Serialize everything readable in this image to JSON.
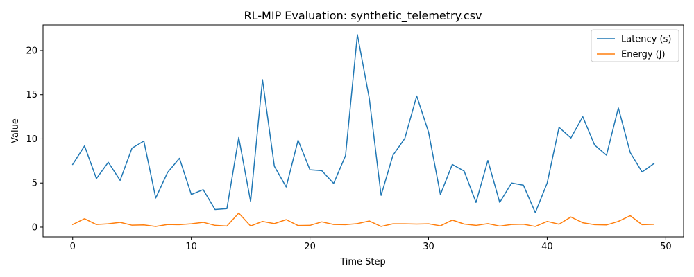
{
  "chart_data": {
    "type": "line",
    "title": "RL-MIP Evaluation: synthetic_telemetry.csv",
    "xlabel": "Time Step",
    "ylabel": "Value",
    "xlim": [
      -2.5,
      51.5
    ],
    "ylim": [
      -1.1,
      22.9
    ],
    "xticks": [
      0,
      10,
      20,
      30,
      40,
      50
    ],
    "yticks": [
      0,
      5,
      10,
      15,
      20
    ],
    "grid": false,
    "legend_position": "top-right",
    "x": [
      0,
      1,
      2,
      3,
      4,
      5,
      6,
      7,
      8,
      9,
      10,
      11,
      12,
      13,
      14,
      15,
      16,
      17,
      18,
      19,
      20,
      21,
      22,
      23,
      24,
      25,
      26,
      27,
      28,
      29,
      30,
      31,
      32,
      33,
      34,
      35,
      36,
      37,
      38,
      39,
      40,
      41,
      42,
      43,
      44,
      45,
      46,
      47,
      48,
      49
    ],
    "series": [
      {
        "name": "Latency (s)",
        "color": "#1f77b4",
        "values": [
          7.1,
          9.2,
          5.5,
          7.35,
          5.3,
          8.95,
          9.75,
          3.3,
          6.2,
          7.8,
          3.7,
          4.25,
          2.0,
          2.1,
          10.15,
          2.9,
          16.7,
          6.9,
          4.55,
          9.85,
          6.5,
          6.4,
          4.95,
          8.1,
          21.8,
          14.6,
          3.6,
          8.15,
          10.05,
          14.85,
          10.75,
          3.7,
          7.1,
          6.35,
          2.8,
          7.55,
          2.8,
          5.0,
          4.75,
          1.65,
          5.0,
          11.3,
          10.1,
          12.5,
          9.3,
          8.15,
          13.5,
          8.45,
          6.25,
          7.2
        ]
      },
      {
        "name": "Energy (J)",
        "color": "#ff7f0e",
        "values": [
          0.3,
          0.95,
          0.3,
          0.38,
          0.55,
          0.22,
          0.25,
          0.08,
          0.3,
          0.28,
          0.38,
          0.55,
          0.2,
          0.13,
          1.6,
          0.13,
          0.65,
          0.4,
          0.85,
          0.18,
          0.2,
          0.6,
          0.3,
          0.28,
          0.4,
          0.7,
          0.08,
          0.38,
          0.38,
          0.35,
          0.38,
          0.15,
          0.8,
          0.35,
          0.2,
          0.4,
          0.12,
          0.3,
          0.33,
          0.08,
          0.65,
          0.33,
          1.15,
          0.5,
          0.28,
          0.25,
          0.65,
          1.3,
          0.28,
          0.32
        ]
      }
    ]
  }
}
